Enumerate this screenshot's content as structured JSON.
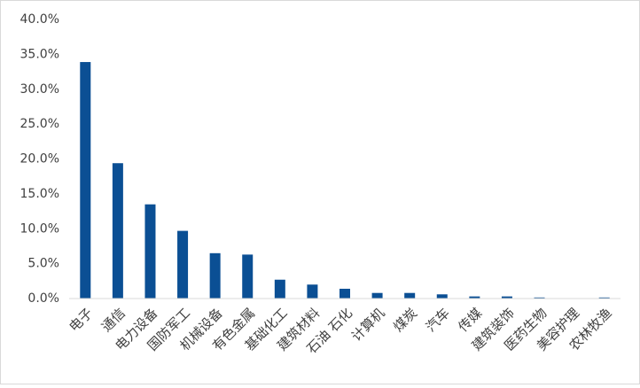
{
  "chart_data": {
    "type": "bar",
    "categories": [
      "电子",
      "通信",
      "电力设备",
      "国防军工",
      "机械设备",
      "有色金属",
      "基础化工",
      "建筑材料",
      "石油 石化",
      "计算机",
      "煤炭",
      "汽车",
      "传媒",
      "建筑装饰",
      "医药生物",
      "美容护理",
      "农林牧渔"
    ],
    "values": [
      33.9,
      19.4,
      13.5,
      9.7,
      6.5,
      6.3,
      2.7,
      2.0,
      1.4,
      0.8,
      0.8,
      0.6,
      0.3,
      0.3,
      0.15,
      0,
      0.15
    ],
    "color": "#0b4f94",
    "ylim": [
      0,
      40
    ],
    "yticks": [
      {
        "value": 0,
        "label": "0.0%"
      },
      {
        "value": 5,
        "label": "5.0%"
      },
      {
        "value": 10,
        "label": "10.0%"
      },
      {
        "value": 15,
        "label": "15.0%"
      },
      {
        "value": 20,
        "label": "20.0%"
      },
      {
        "value": 25,
        "label": "25.0%"
      },
      {
        "value": 30,
        "label": "30.0%"
      },
      {
        "value": 35,
        "label": "35.0%"
      },
      {
        "value": 40,
        "label": "40.0%"
      }
    ],
    "grid": false
  }
}
